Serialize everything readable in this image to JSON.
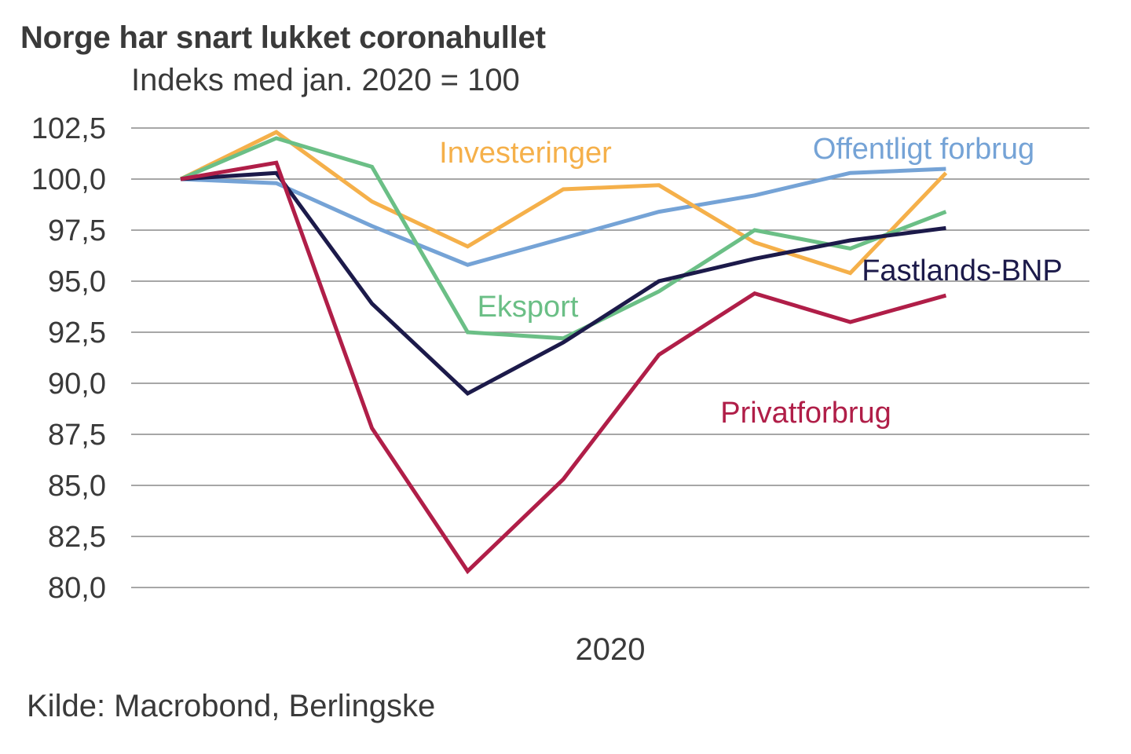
{
  "chart_data": {
    "type": "line",
    "title": "Norge har snart lukket coronahullet",
    "subtitle": "Indeks med jan. 2020 = 100",
    "source": "Kilde: Macrobond, Berlingske",
    "xlabel": "2020",
    "ylabel": "",
    "ylim": [
      80,
      102.5
    ],
    "yticks": [
      80,
      82.5,
      85,
      87.5,
      90,
      92.5,
      95,
      97.5,
      100,
      102.5
    ],
    "ytick_labels": [
      "80,0",
      "82,5",
      "85,0",
      "87,5",
      "90,0",
      "92,5",
      "95,0",
      "97,5",
      "100,0",
      "102,5"
    ],
    "x": [
      1,
      2,
      3,
      4,
      5,
      6,
      7,
      8,
      9
    ],
    "x_tick_label": "2020",
    "grid": true,
    "legend": "inline labels",
    "series": [
      {
        "name": "Offentligt forbrug",
        "color": "#75a3d6",
        "values": [
          100,
          99.8,
          97.7,
          95.8,
          97.1,
          98.4,
          99.2,
          100.3,
          100.5
        ]
      },
      {
        "name": "Investeringer",
        "color": "#f5b04a",
        "values": [
          100,
          102.3,
          98.9,
          96.7,
          99.5,
          99.7,
          96.9,
          95.4,
          100.3
        ]
      },
      {
        "name": "Eksport",
        "color": "#6bbf86",
        "values": [
          100,
          102.0,
          100.6,
          92.5,
          92.2,
          94.5,
          97.5,
          96.6,
          98.4
        ]
      },
      {
        "name": "Fastlands-BNP",
        "color": "#1c1a4a",
        "values": [
          100,
          100.3,
          93.9,
          89.5,
          92.0,
          95.0,
          96.1,
          97.0,
          97.6
        ]
      },
      {
        "name": "Privatforbrug",
        "color": "#b01e48",
        "values": [
          100,
          100.8,
          87.8,
          80.8,
          85.3,
          91.4,
          94.4,
          93.0,
          94.3
        ]
      }
    ]
  }
}
